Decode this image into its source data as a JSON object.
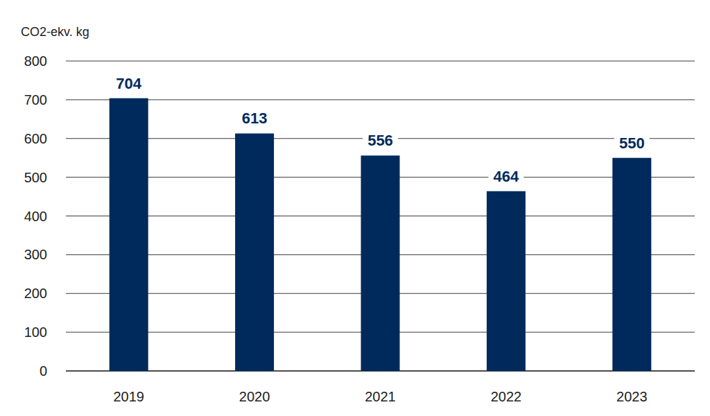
{
  "chart_data": {
    "type": "bar",
    "ylabel": "CO2-ekv. kg",
    "categories": [
      "2019",
      "2020",
      "2021",
      "2022",
      "2023"
    ],
    "values": [
      704,
      613,
      556,
      464,
      550
    ],
    "color": "#002a5c",
    "ylim": [
      0,
      800
    ],
    "yticks": [
      0,
      100,
      200,
      300,
      400,
      500,
      600,
      700,
      800
    ],
    "grid": true,
    "data_labels": true
  }
}
